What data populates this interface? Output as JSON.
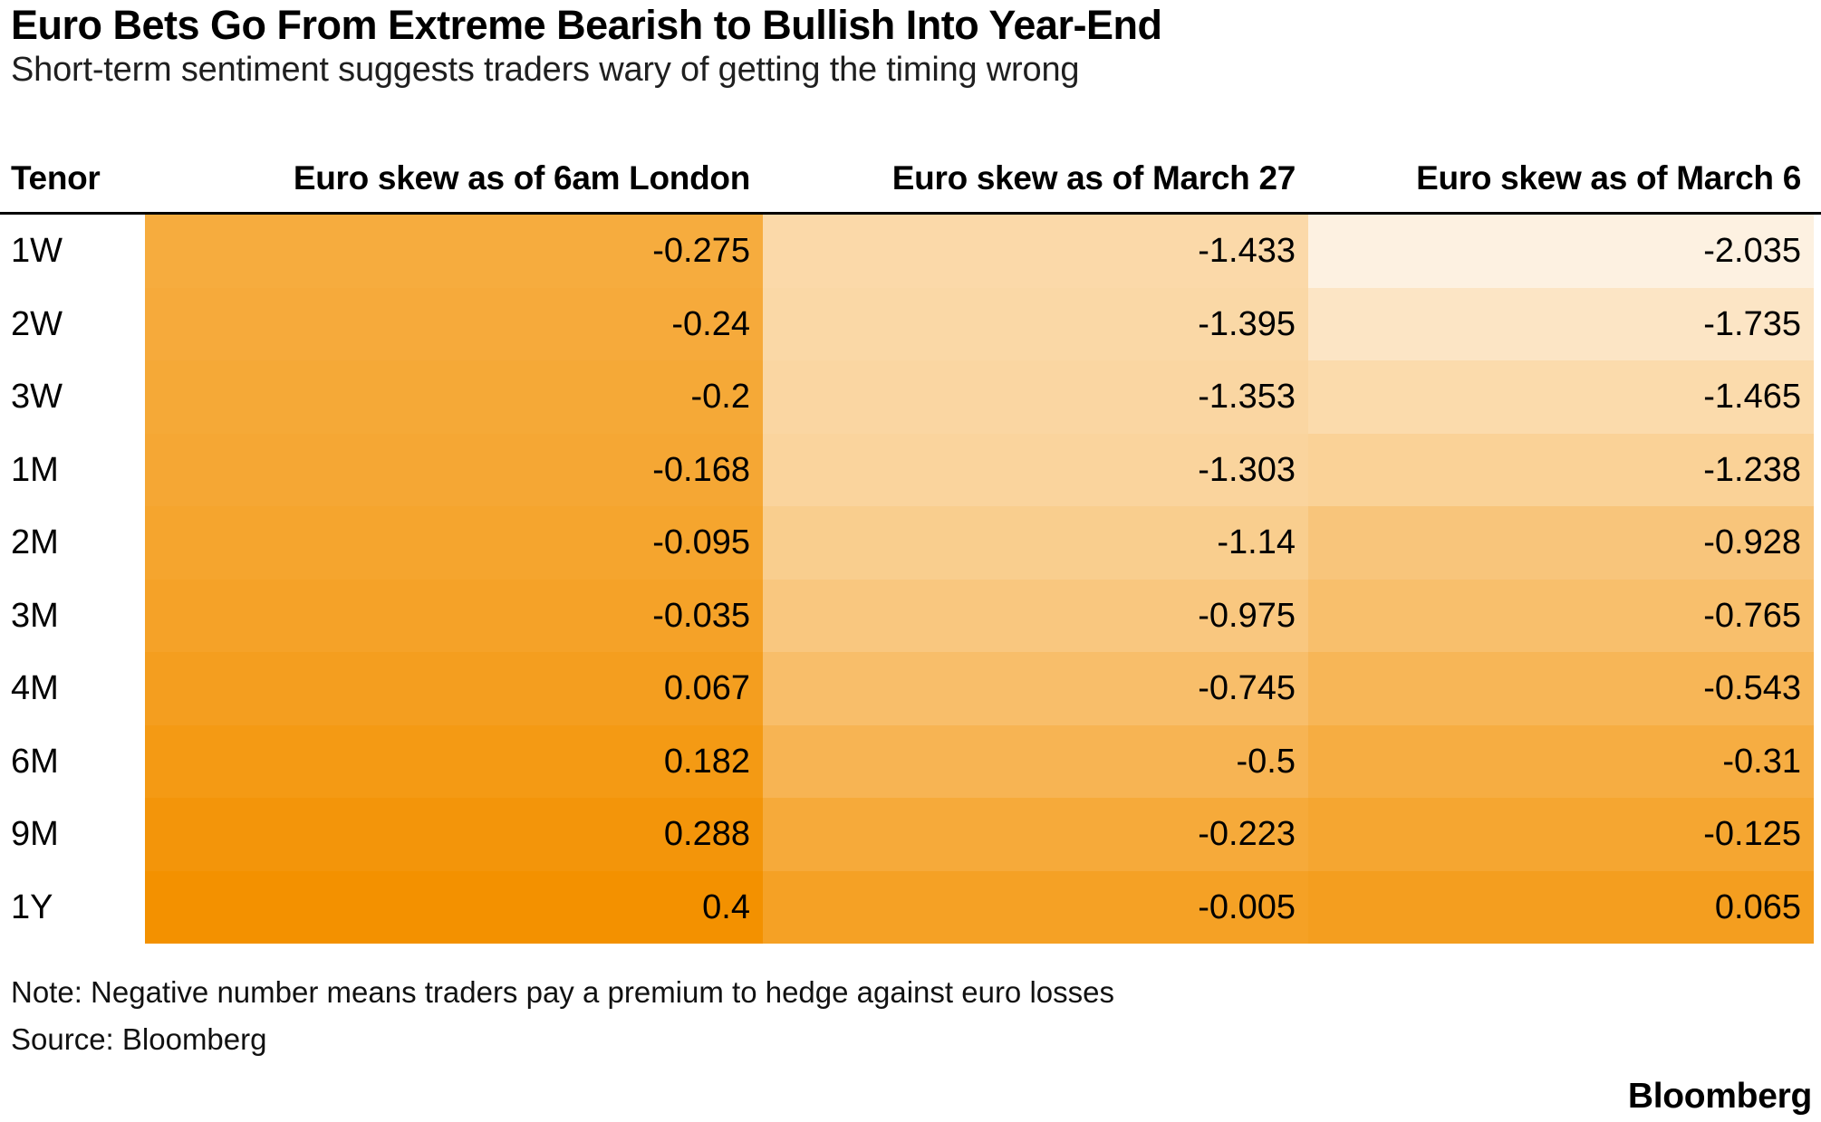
{
  "chart_data": {
    "type": "heatmap",
    "title": "Euro Bets Go From Extreme Bearish to Bullish Into Year-End",
    "subtitle": "Short-term sentiment suggests traders wary of getting the timing wrong",
    "columns": [
      "Tenor",
      "Euro skew as of 6am London",
      "Euro skew as of March 27",
      "Euro skew as of March 6"
    ],
    "rows": [
      {
        "tenor": "1W",
        "values": [
          "-0.275",
          "-1.433",
          "-2.035"
        ]
      },
      {
        "tenor": "2W",
        "values": [
          "-0.24",
          "-1.395",
          "-1.735"
        ]
      },
      {
        "tenor": "3W",
        "values": [
          "-0.2",
          "-1.353",
          "-1.465"
        ]
      },
      {
        "tenor": "1M",
        "values": [
          "-0.168",
          "-1.303",
          "-1.238"
        ]
      },
      {
        "tenor": "2M",
        "values": [
          "-0.095",
          "-1.14",
          "-0.928"
        ]
      },
      {
        "tenor": "3M",
        "values": [
          "-0.035",
          "-0.975",
          "-0.765"
        ]
      },
      {
        "tenor": "4M",
        "values": [
          "0.067",
          "-0.745",
          "-0.543"
        ]
      },
      {
        "tenor": "6M",
        "values": [
          "0.182",
          "-0.5",
          "-0.31"
        ]
      },
      {
        "tenor": "9M",
        "values": [
          "0.288",
          "-0.223",
          "-0.125"
        ]
      },
      {
        "tenor": "1Y",
        "values": [
          "0.4",
          "-0.005",
          "0.065"
        ]
      }
    ],
    "color_scale": {
      "min_value": -2.035,
      "max_value": 0.4,
      "min_color": "#FDF1E1",
      "max_color": "#F39100"
    },
    "legend": "none",
    "grid": "off"
  },
  "footer": {
    "note": "Note: Negative number means traders pay a premium to hedge against euro losses",
    "source": "Source: Bloomberg",
    "brand": "Bloomberg"
  }
}
